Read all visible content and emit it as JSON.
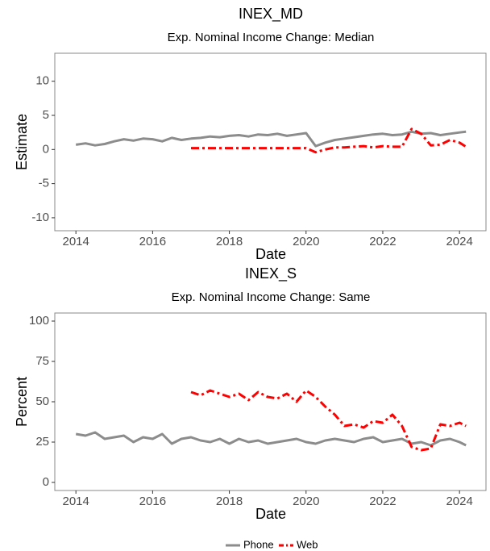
{
  "chart_data": [
    {
      "type": "line",
      "title": "INEX_MD",
      "subtitle": "Exp. Nominal Income Change: Median",
      "x_label": "Date",
      "y_label": "Estimate",
      "xlim": [
        2013.45,
        2024.69
      ],
      "xticks": [
        2014,
        2016,
        2018,
        2020,
        2022,
        2024
      ],
      "ylim": [
        -11.9,
        14.1
      ],
      "yticks": [
        {
          "value": -10,
          "label": "-10"
        },
        {
          "value": -5,
          "label": "-5"
        },
        0,
        5,
        10
      ],
      "series": [
        {
          "name": "Phone",
          "color": "#8c8c8c",
          "x": [
            2014,
            2014.25,
            2014.5,
            2014.75,
            2015,
            2015.25,
            2015.5,
            2015.75,
            2016,
            2016.25,
            2016.5,
            2016.75,
            2017,
            2017.25,
            2017.5,
            2017.75,
            2018,
            2018.25,
            2018.5,
            2018.75,
            2019,
            2019.25,
            2019.5,
            2019.75,
            2020,
            2020.25,
            2020.5,
            2020.75,
            2021,
            2021.25,
            2021.5,
            2021.75,
            2022,
            2022.25,
            2022.5,
            2022.75,
            2023,
            2023.25,
            2023.5,
            2023.75,
            2024,
            2024.17
          ],
          "values": [
            0.7,
            0.9,
            0.6,
            0.8,
            1.2,
            1.5,
            1.3,
            1.6,
            1.5,
            1.2,
            1.7,
            1.4,
            1.6,
            1.7,
            1.9,
            1.8,
            2.0,
            2.1,
            1.9,
            2.2,
            2.1,
            2.3,
            2.0,
            2.2,
            2.4,
            0.5,
            1.0,
            1.4,
            1.6,
            1.8,
            2.0,
            2.2,
            2.3,
            2.1,
            2.2,
            2.6,
            2.3,
            2.4,
            2.1,
            2.3,
            2.5,
            2.6
          ]
        },
        {
          "name": "Web",
          "color": "#ff0000",
          "x": [
            2017,
            2017.25,
            2017.5,
            2017.75,
            2018,
            2018.25,
            2018.5,
            2018.75,
            2019,
            2019.25,
            2019.5,
            2019.75,
            2020,
            2020.25,
            2020.5,
            2020.75,
            2021,
            2021.25,
            2021.5,
            2021.75,
            2022,
            2022.25,
            2022.5,
            2022.75,
            2023,
            2023.25,
            2023.5,
            2023.75,
            2024,
            2024.17
          ],
          "values": [
            0.2,
            0.2,
            0.2,
            0.2,
            0.2,
            0.2,
            0.2,
            0.2,
            0.2,
            0.2,
            0.2,
            0.2,
            0.2,
            -0.4,
            0.0,
            0.3,
            0.3,
            0.4,
            0.5,
            0.3,
            0.5,
            0.4,
            0.4,
            3.0,
            2.3,
            0.6,
            0.7,
            1.4,
            1.0,
            0.4
          ]
        }
      ]
    },
    {
      "type": "line",
      "title": "INEX_S",
      "subtitle": "Exp. Nominal Income Change: Same",
      "x_label": "Date",
      "y_label": "Percent",
      "xlim": [
        2013.45,
        2024.69
      ],
      "xticks": [
        2014,
        2016,
        2018,
        2020,
        2022,
        2024
      ],
      "ylim": [
        -5,
        105
      ],
      "yticks": [
        0,
        25,
        50,
        75,
        100
      ],
      "series": [
        {
          "name": "Phone",
          "color": "#8c8c8c",
          "x": [
            2014,
            2014.25,
            2014.5,
            2014.75,
            2015,
            2015.25,
            2015.5,
            2015.75,
            2016,
            2016.25,
            2016.5,
            2016.75,
            2017,
            2017.25,
            2017.5,
            2017.75,
            2018,
            2018.25,
            2018.5,
            2018.75,
            2019,
            2019.25,
            2019.5,
            2019.75,
            2020,
            2020.25,
            2020.5,
            2020.75,
            2021,
            2021.25,
            2021.5,
            2021.75,
            2022,
            2022.25,
            2022.5,
            2022.75,
            2023,
            2023.25,
            2023.5,
            2023.75,
            2024,
            2024.17
          ],
          "values": [
            30,
            29,
            31,
            27,
            28,
            29,
            25,
            28,
            27,
            30,
            24,
            27,
            28,
            26,
            25,
            27,
            24,
            27,
            25,
            26,
            24,
            25,
            26,
            27,
            25,
            24,
            26,
            27,
            26,
            25,
            27,
            28,
            25,
            26,
            27,
            24,
            25,
            23,
            26,
            27,
            25,
            23
          ]
        },
        {
          "name": "Web",
          "color": "#ff0000",
          "x": [
            2017,
            2017.25,
            2017.5,
            2017.75,
            2018,
            2018.25,
            2018.5,
            2018.75,
            2019,
            2019.25,
            2019.5,
            2019.75,
            2020,
            2020.25,
            2020.5,
            2020.75,
            2021,
            2021.25,
            2021.5,
            2021.75,
            2022,
            2022.25,
            2022.5,
            2022.75,
            2023,
            2023.25,
            2023.5,
            2023.75,
            2024,
            2024.17
          ],
          "values": [
            56,
            54,
            57,
            55,
            53,
            55,
            51,
            56,
            53,
            52,
            55,
            50,
            57,
            53,
            47,
            42,
            35,
            36,
            34,
            38,
            37,
            42,
            35,
            22,
            20,
            21,
            36,
            35,
            37,
            35
          ]
        }
      ]
    }
  ]
}
